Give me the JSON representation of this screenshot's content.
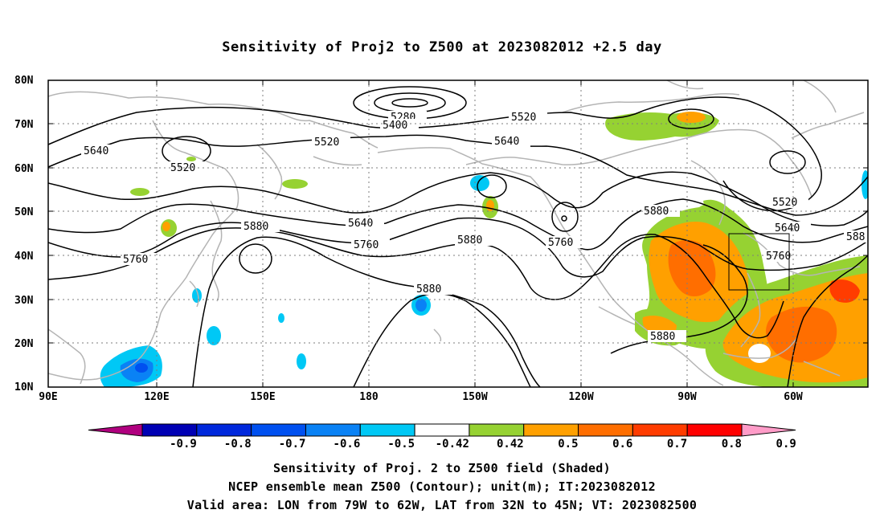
{
  "title": "Sensitivity of Proj2 to Z500 at 2023082012 +2.5 day",
  "lat_labels": [
    "80N",
    "70N",
    "60N",
    "50N",
    "40N",
    "30N",
    "20N",
    "10N"
  ],
  "lon_labels": [
    "90E",
    "120E",
    "150E",
    "180",
    "150W",
    "120W",
    "90W",
    "60W"
  ],
  "contour_labels": [
    "5280",
    "5400",
    "5520",
    "5520",
    "5520",
    "5520",
    "5640",
    "5640",
    "5640",
    "5640",
    "5760",
    "5760",
    "5760",
    "5760",
    "5880",
    "5880",
    "5880",
    "5880",
    "5880",
    "588"
  ],
  "colorbar": {
    "labels": [
      "-0.9",
      "-0.8",
      "-0.7",
      "-0.6",
      "-0.5",
      "-0.42",
      "0.42",
      "0.5",
      "0.6",
      "0.7",
      "0.8",
      "0.9"
    ],
    "colors": [
      "#b0007f",
      "#0000b4",
      "#0028dc",
      "#0050f0",
      "#0a82f5",
      "#00c8f5",
      "#ffffff",
      "#96d232",
      "#ffa000",
      "#ff6e00",
      "#ff3c00",
      "#ff0000",
      "#ff9cc8"
    ]
  },
  "valid_box": {
    "lon": [
      "79W",
      "62W"
    ],
    "lat": [
      "32N",
      "45N"
    ]
  },
  "captions": [
    "Sensitivity of Proj. 2 to Z500 field (Shaded)",
    "NCEP ensemble mean Z500 (Contour); unit(m); IT:2023082012",
    "Valid area: LON from 79W to 62W, LAT from 32N to 45N; VT: 2023082500"
  ]
}
